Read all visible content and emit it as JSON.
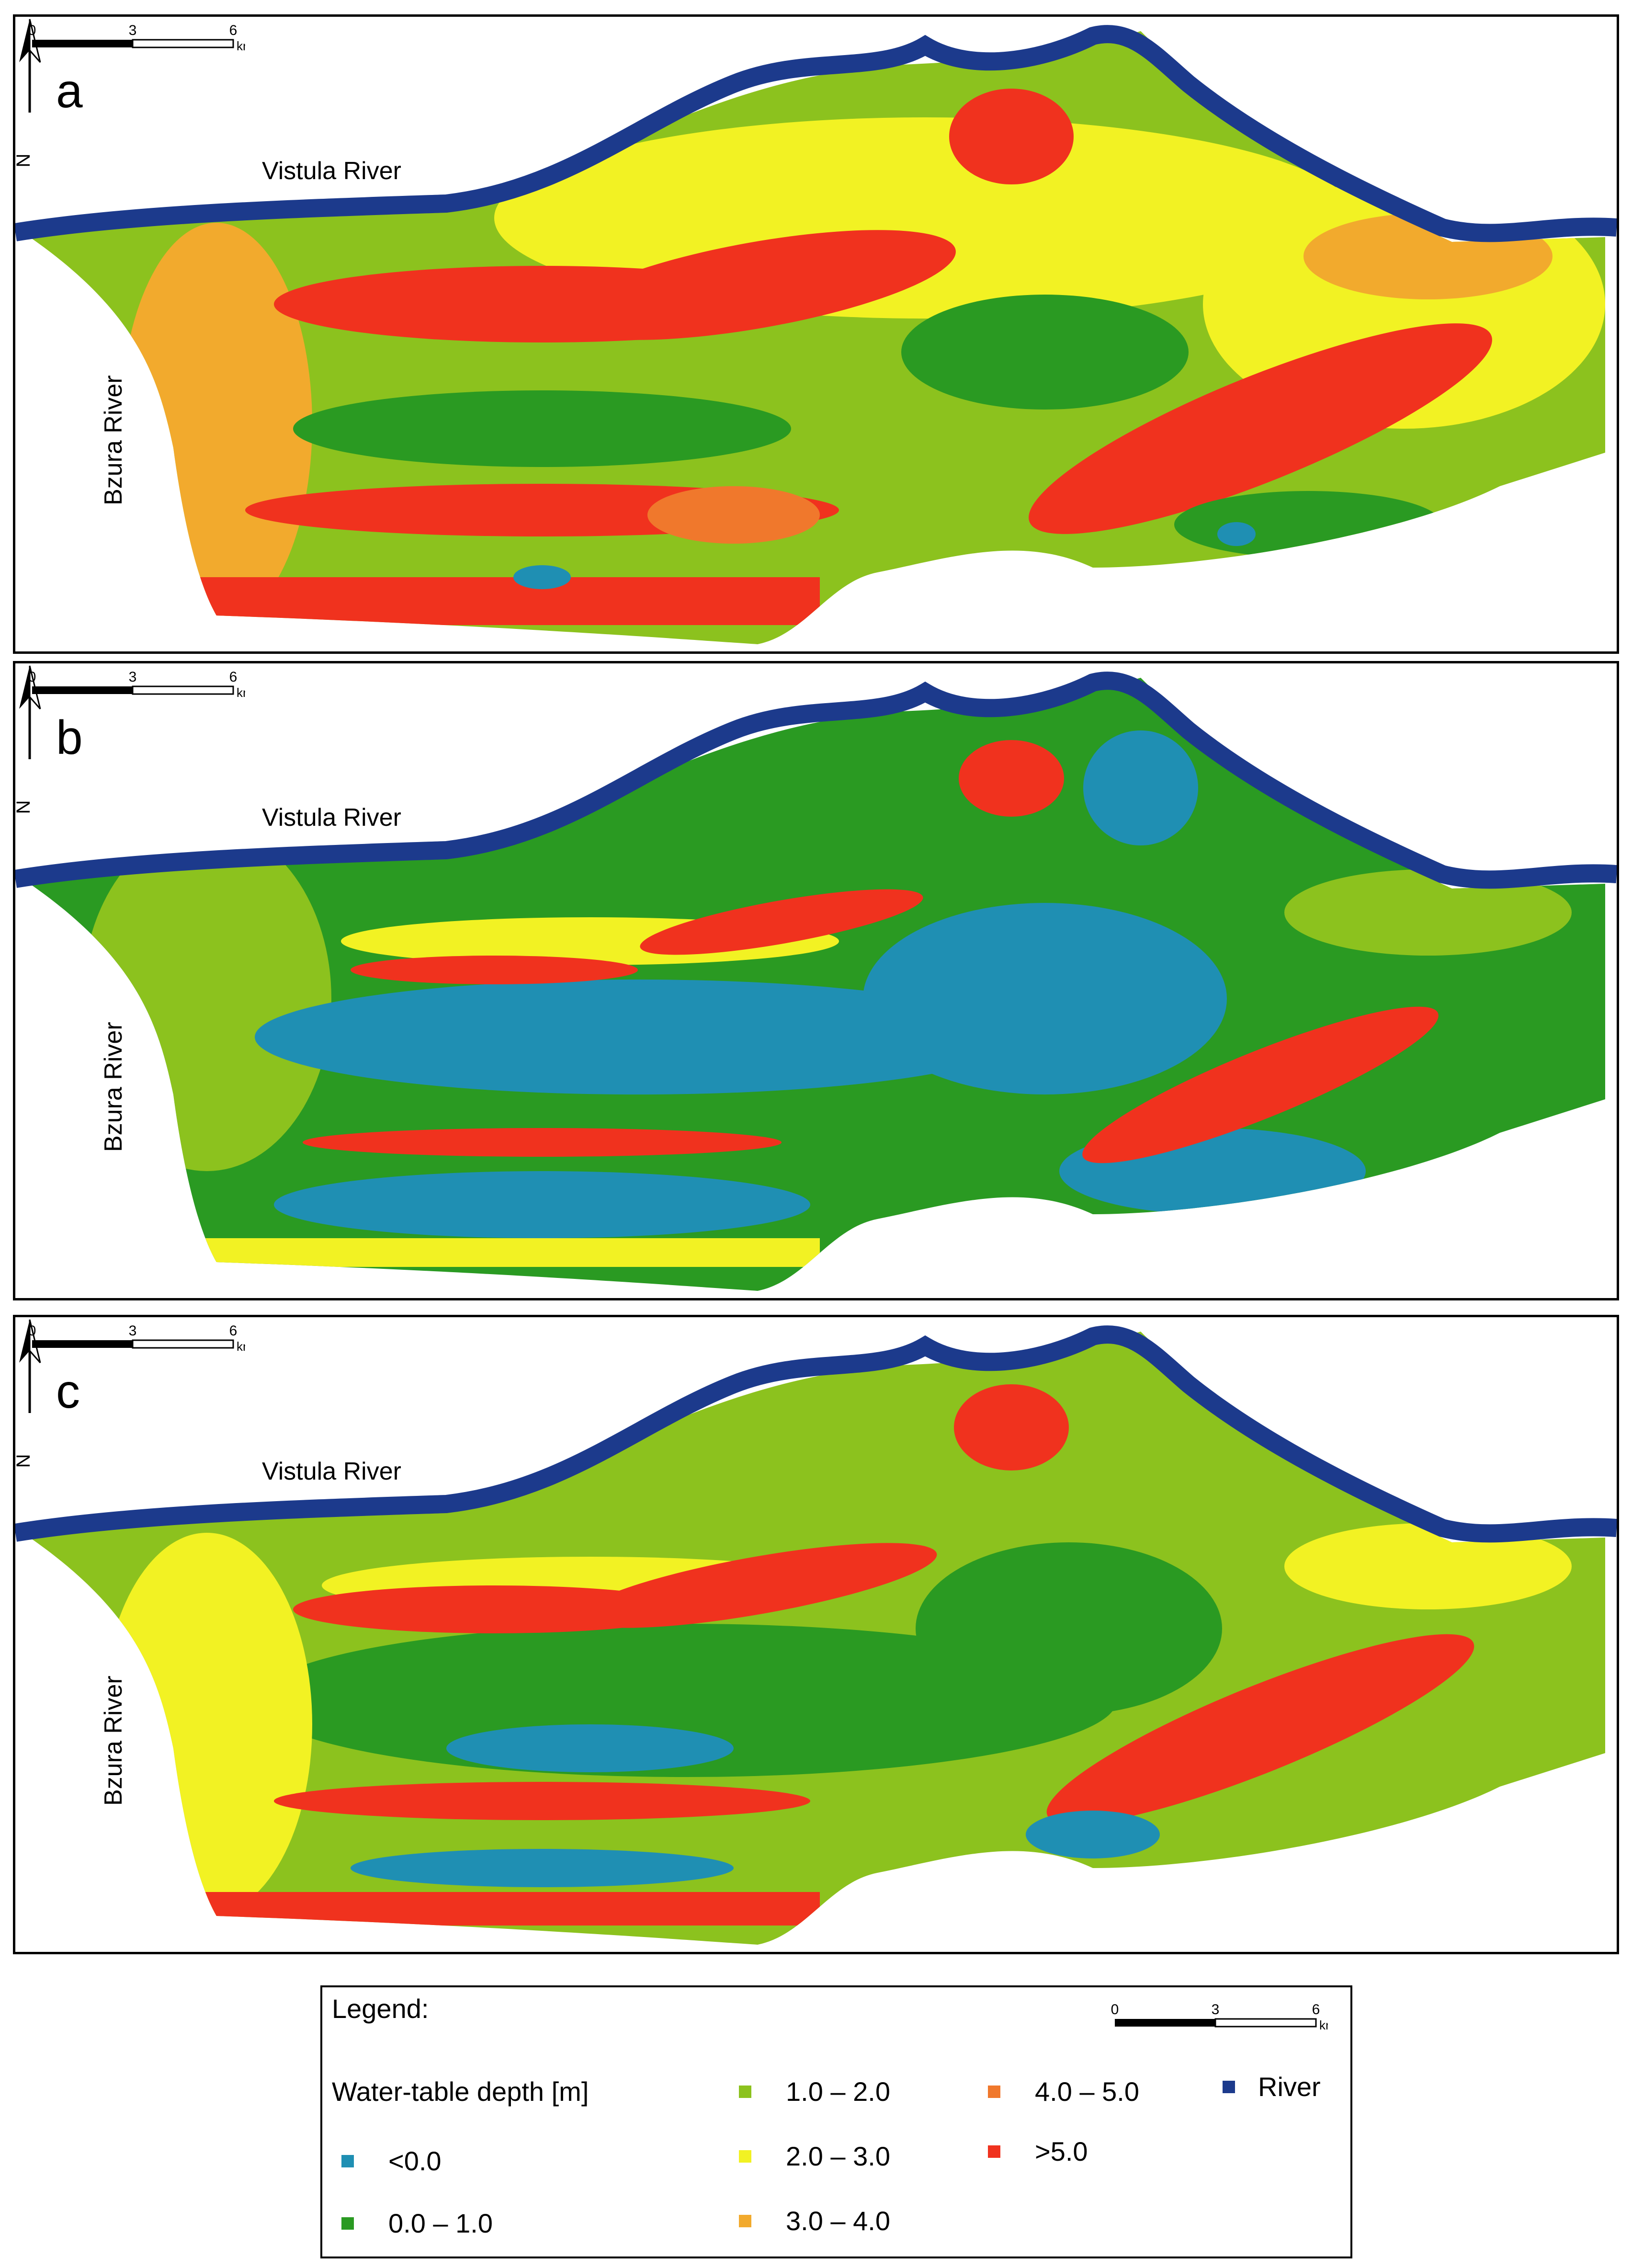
{
  "colors": {
    "river": "#1c3a8c",
    "lt0": "#1f8fb3",
    "d0_1": "#2a9a22",
    "d1_2": "#8cc21e",
    "d2_3": "#f2f223",
    "d3_4": "#f2aa2d",
    "d4_5": "#f0782c",
    "gt5": "#f0321e"
  },
  "panels": [
    {
      "letter": "a",
      "vistula_label": "Vistula River",
      "bzura_label": "Bzura River",
      "north": "N",
      "scale": {
        "ticks": [
          "0",
          "3",
          "6"
        ],
        "unit": "km"
      }
    },
    {
      "letter": "b",
      "vistula_label": "Vistula River",
      "bzura_label": "Bzura River",
      "north": "N",
      "scale": {
        "ticks": [
          "0",
          "3",
          "6"
        ],
        "unit": "km"
      }
    },
    {
      "letter": "c",
      "vistula_label": "Vistula River",
      "bzura_label": "Bzura River",
      "north": "N",
      "scale": {
        "ticks": [
          "0",
          "3",
          "6"
        ],
        "unit": "km"
      }
    }
  ],
  "legend": {
    "title": "Legend:",
    "subtitle": "Water-table depth [m]",
    "scale": {
      "ticks": [
        "0",
        "3",
        "6"
      ],
      "unit": "km"
    },
    "items": [
      {
        "label": "<0.0",
        "color": "#1f8fb3"
      },
      {
        "label": "0.0 – 1.0",
        "color": "#2a9a22"
      },
      {
        "label": "1.0 – 2.0",
        "color": "#8cc21e"
      },
      {
        "label": "2.0 – 3.0",
        "color": "#f2f223"
      },
      {
        "label": "3.0 – 4.0",
        "color": "#f2aa2d"
      },
      {
        "label": "4.0 – 5.0",
        "color": "#f0782c"
      },
      {
        "label": ">5.0",
        "color": "#f0321e"
      },
      {
        "label": "River",
        "color": "#1c3a8c"
      }
    ]
  }
}
